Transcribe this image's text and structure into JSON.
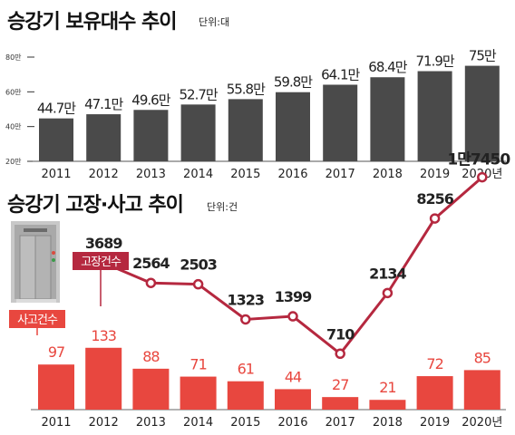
{
  "chart_data": [
    {
      "type": "bar",
      "title": "승강기 보유대수 추이",
      "unit": "단위:대",
      "categories": [
        "2011",
        "2012",
        "2013",
        "2014",
        "2015",
        "2016",
        "2017",
        "2018",
        "2019",
        "2020년"
      ],
      "values": [
        44.7,
        47.1,
        49.6,
        52.7,
        55.8,
        59.8,
        64.1,
        68.4,
        71.9,
        75
      ],
      "value_labels": [
        "44.7만",
        "47.1만",
        "49.6만",
        "52.7만",
        "55.8만",
        "59.8만",
        "64.1만",
        "68.4만",
        "71.9만",
        "75만"
      ],
      "yticks": [
        "80만",
        "60만",
        "40만",
        "20만"
      ],
      "ylim": [
        20,
        80
      ],
      "bar_color": "#4a4a4a"
    },
    {
      "type": "bar+line",
      "title": "승강기 고장·사고 추이",
      "unit": "단위:건",
      "categories": [
        "2011",
        "2012",
        "2013",
        "2014",
        "2015",
        "2016",
        "2017",
        "2018",
        "2019",
        "2020년"
      ],
      "series": [
        {
          "name": "고장건수",
          "type": "line",
          "x": [
            "2012",
            "2013",
            "2014",
            "2015",
            "2016",
            "2017",
            "2018",
            "2019",
            "2020년"
          ],
          "values": [
            3689,
            2564,
            2503,
            1323,
            1399,
            710,
            2134,
            8256,
            17450
          ],
          "labels": [
            "3689",
            "2564",
            "2503",
            "1323",
            "1399",
            "710",
            "2134",
            "8256",
            "1만7450"
          ],
          "color": "#b5283f"
        },
        {
          "name": "사고건수",
          "type": "bar",
          "values": [
            97,
            133,
            88,
            71,
            61,
            44,
            27,
            21,
            72,
            85
          ],
          "labels": [
            "97",
            "133",
            "88",
            "71",
            "61",
            "44",
            "27",
            "21",
            "72",
            "85"
          ],
          "color": "#e8473f"
        }
      ]
    }
  ]
}
